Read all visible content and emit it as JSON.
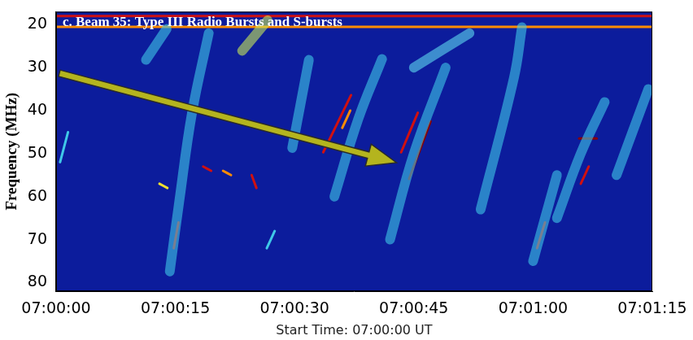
{
  "chart_data": {
    "type": "line",
    "title": "c. Beam 35: Type III Radio Bursts and S-bursts",
    "xlabel": "Start Time: 07:00:00 UT",
    "ylabel": "Frequency (MHz)",
    "xlim": [
      0,
      75
    ],
    "xticks": [
      {
        "value": 0,
        "label": "07:00:00"
      },
      {
        "value": 15,
        "label": "07:00:15"
      },
      {
        "value": 30,
        "label": "07:00:30"
      },
      {
        "value": 45,
        "label": "07:00:45"
      },
      {
        "value": 60,
        "label": "07:01:00"
      },
      {
        "value": 75,
        "label": "07:01:15"
      }
    ],
    "ylim": [
      82,
      17
    ],
    "yticks": [
      20,
      30,
      40,
      50,
      60,
      70,
      80
    ],
    "grid": false,
    "series": [
      {
        "color": "#3fc8e8",
        "line_style": "diffuse",
        "x": [
          14.3,
          15.5,
          17.1,
          19.2
        ],
        "y": [
          77.4,
          61,
          40.5,
          22
        ]
      },
      {
        "color": "#3fc8e8",
        "line_style": "diffuse",
        "x": [
          11.3,
          13.9
        ],
        "y": [
          28.2,
          21
        ]
      },
      {
        "color": "#c8e858",
        "line_style": "diffuse",
        "x": [
          23.4,
          26.6
        ],
        "y": [
          26.1,
          19
        ]
      },
      {
        "color": "#3fc8e8",
        "line_style": "diffuse",
        "x": [
          29.7,
          31.8
        ],
        "y": [
          48.7,
          28.2
        ]
      },
      {
        "color": "#3fc8e8",
        "line_style": "diffuse",
        "x": [
          35,
          38,
          41
        ],
        "y": [
          60,
          42,
          28
        ]
      },
      {
        "color": "#3fc8e8",
        "line_style": "diffuse",
        "x": [
          42,
          45,
          49
        ],
        "y": [
          70,
          50,
          30
        ]
      },
      {
        "color": "#5fd8f0",
        "line_style": "diffuse",
        "x": [
          45,
          52
        ],
        "y": [
          30,
          22
        ]
      },
      {
        "color": "#3fc8e8",
        "line_style": "diffuse",
        "x": [
          53.4,
          57.6,
          58.6
        ],
        "y": [
          63,
          32.3,
          20.6
        ]
      },
      {
        "color": "#3fc8e8",
        "line_style": "diffuse",
        "x": [
          60,
          63
        ],
        "y": [
          75,
          55
        ]
      },
      {
        "color": "#3fc8e8",
        "line_style": "diffuse",
        "x": [
          63,
          66,
          69
        ],
        "y": [
          65,
          50,
          38
        ]
      },
      {
        "color": "#3fc8e8",
        "line_style": "diffuse",
        "x": [
          70.5,
          74.5
        ],
        "y": [
          55,
          35
        ]
      },
      {
        "color": "#3fc8e8",
        "line_style": "sharp",
        "x": [
          0.5,
          1.5
        ],
        "y": [
          52,
          45
        ]
      },
      {
        "color": "#d01010",
        "line_style": "sharp",
        "x": [
          33.6,
          37.1
        ],
        "y": [
          49.7,
          36.4
        ]
      },
      {
        "color": "#d01010",
        "line_style": "sharp",
        "x": [
          43.4,
          45.5
        ],
        "y": [
          49.7,
          40.5
        ]
      },
      {
        "color": "#8b0000",
        "line_style": "sharp",
        "x": [
          44.4,
          47.1
        ],
        "y": [
          55.9,
          42.5
        ]
      },
      {
        "color": "#d01010",
        "line_style": "sharp",
        "x": [
          14.8,
          15.4
        ],
        "y": [
          72,
          66
        ]
      },
      {
        "color": "#d01010",
        "line_style": "sharp",
        "x": [
          18.5,
          19.5
        ],
        "y": [
          53,
          54
        ]
      },
      {
        "color": "#ff8c00",
        "line_style": "sharp",
        "x": [
          21,
          22
        ],
        "y": [
          54,
          55
        ]
      },
      {
        "color": "#d01010",
        "line_style": "sharp",
        "x": [
          24.6,
          25.2
        ],
        "y": [
          55,
          58
        ]
      },
      {
        "color": "#f0e030",
        "line_style": "sharp",
        "x": [
          13,
          14
        ],
        "y": [
          57,
          58
        ]
      },
      {
        "color": "#3fc8e8",
        "line_style": "sharp",
        "x": [
          26.5,
          27.5
        ],
        "y": [
          72,
          68
        ]
      },
      {
        "color": "#ff8c00",
        "line_style": "sharp",
        "x": [
          36,
          37
        ],
        "y": [
          44,
          40
        ]
      },
      {
        "color": "#8b0000",
        "line_style": "sharp",
        "x": [
          65.8,
          68
        ],
        "y": [
          46.5,
          46.5
        ]
      },
      {
        "color": "#d01010",
        "line_style": "sharp",
        "x": [
          60.5,
          61.5
        ],
        "y": [
          72,
          66
        ]
      },
      {
        "color": "#d01010",
        "line_style": "sharp",
        "x": [
          66,
          67
        ],
        "y": [
          57,
          53
        ]
      },
      {
        "color": "#d01010",
        "line_style": "sharp",
        "x": [
          0,
          75
        ],
        "y": [
          18,
          18
        ]
      },
      {
        "color": "#ff8c00",
        "line_style": "sharp",
        "x": [
          0,
          75
        ],
        "y": [
          20.5,
          20.5
        ]
      }
    ]
  }
}
